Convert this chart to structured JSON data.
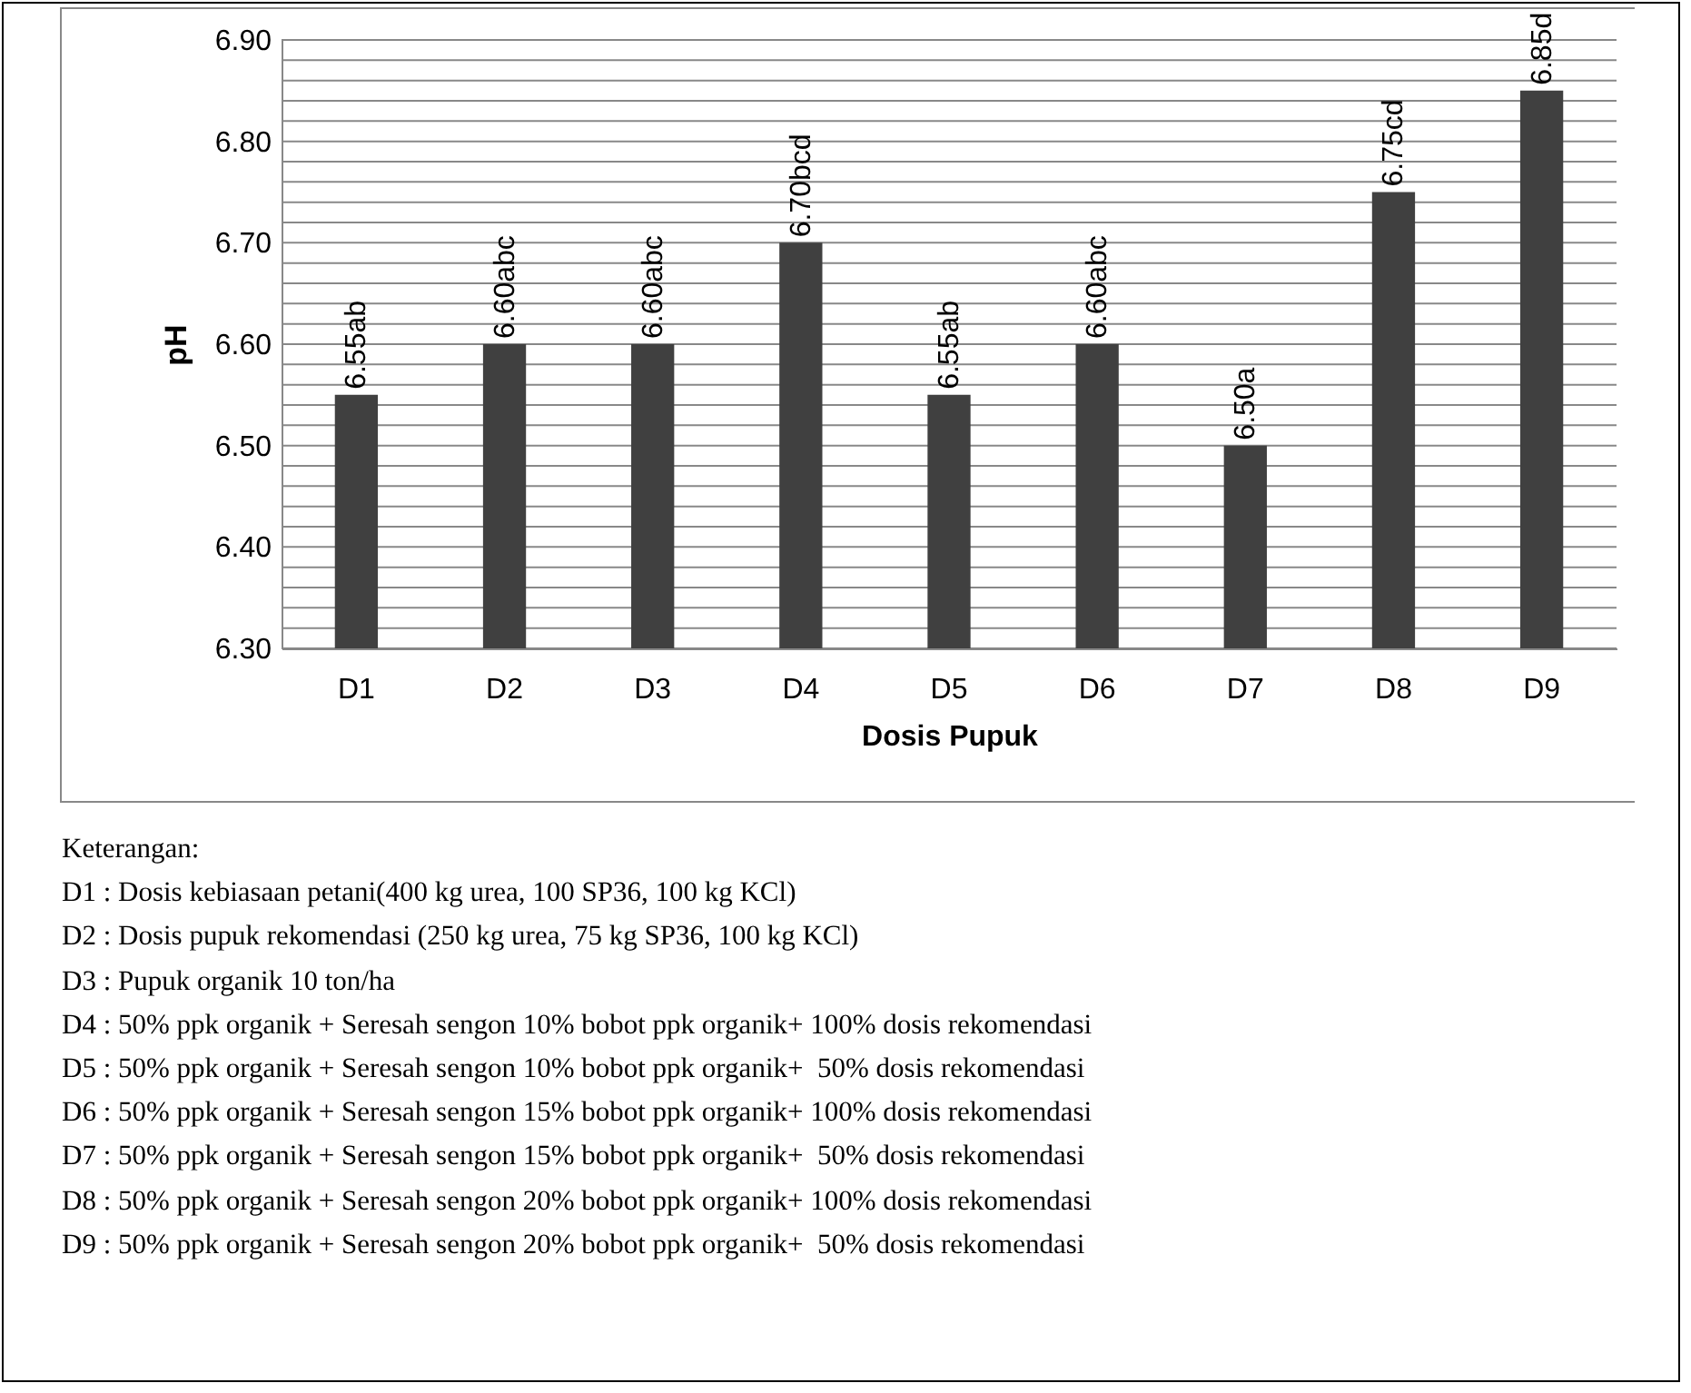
{
  "chart_data": {
    "type": "bar",
    "xlabel": "Dosis Pupuk",
    "ylabel": "pH",
    "categories": [
      "D1",
      "D2",
      "D3",
      "D4",
      "D5",
      "D6",
      "D7",
      "D8",
      "D9"
    ],
    "values": [
      6.55,
      6.6,
      6.6,
      6.7,
      6.55,
      6.6,
      6.5,
      6.75,
      6.85
    ],
    "value_labels": [
      "6.55ab",
      "6.60abc",
      "6.60abc",
      "6.70bcd",
      "6.55ab",
      "6.60abc",
      "6.50a",
      "6.75cd",
      "6.85d"
    ],
    "color": "#404040",
    "ylim": [
      6.3,
      6.9
    ],
    "yticks": [
      "6.30",
      {
        "value": 6.32,
        "label": null
      },
      {
        "value": 6.34,
        "label": null
      },
      {
        "value": 6.36,
        "label": null
      },
      {
        "value": 6.38,
        "label": null
      },
      {
        "value": 6.4,
        "label": "6.40"
      },
      {
        "value": 6.42,
        "label": null
      },
      {
        "value": 6.44,
        "label": null
      },
      {
        "value": 6.46,
        "label": null
      },
      {
        "value": 6.48,
        "label": null
      },
      {
        "value": 6.5,
        "label": "6.50"
      },
      {
        "value": 6.52,
        "label": null
      },
      {
        "value": 6.54,
        "label": null
      },
      {
        "value": 6.56,
        "label": null
      },
      {
        "value": 6.58,
        "label": null
      },
      {
        "value": 6.6,
        "label": "6.60"
      },
      {
        "value": 6.62,
        "label": null
      },
      {
        "value": 6.64,
        "label": null
      },
      {
        "value": 6.66,
        "label": null
      },
      {
        "value": 6.68,
        "label": null
      },
      {
        "value": 6.7,
        "label": "6.70"
      },
      {
        "value": 6.72,
        "label": null
      },
      {
        "value": 6.74,
        "label": null
      },
      {
        "value": 6.76,
        "label": null
      },
      {
        "value": 6.78,
        "label": null
      },
      {
        "value": 6.8,
        "label": "6.80"
      },
      {
        "value": 6.82,
        "label": null
      },
      {
        "value": 6.84,
        "label": null
      },
      {
        "value": 6.86,
        "label": null
      },
      {
        "value": 6.88,
        "label": null
      },
      {
        "value": 6.9,
        "label": "6.90"
      }
    ],
    "grid": "y",
    "annotations": [
      "Keterangan:",
      "D1 : Dosis kebiasaan petani(400 kg urea, 100 SP36, 100 kg KCl)",
      "D2 : Dosis pupuk rekomendasi (250 kg urea, 75 kg SP36, 100 kg KCl)",
      "D3 : Pupuk organik 10 ton/ha",
      "D4 : 50% ppk organik + Seresah sengon 10% bobot ppk organik+ 100% dosis rekomendasi",
      "D5 : 50% ppk organik + Seresah sengon 10% bobot ppk organik+  50% dosis rekomendasi",
      "D6 : 50% ppk organik + Seresah sengon 15% bobot ppk organik+ 100% dosis rekomendasi",
      "D7 : 50% ppk organik + Seresah sengon 15% bobot ppk organik+  50% dosis rekomendasi",
      "D8 : 50% ppk organik + Seresah sengon 20% bobot ppk organik+ 100% dosis rekomendasi",
      "D9 : 50% ppk organik + Seresah sengon 20% bobot ppk organik+  50% dosis rekomendasi"
    ]
  }
}
